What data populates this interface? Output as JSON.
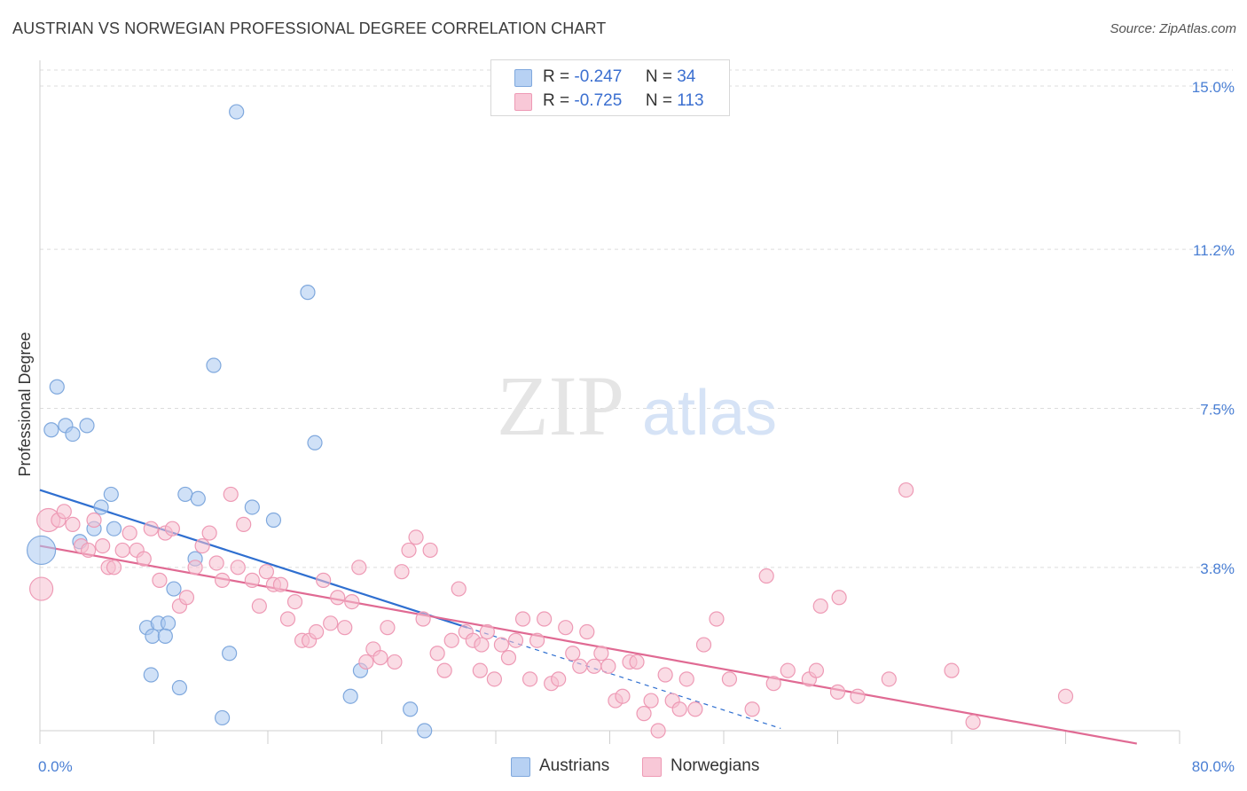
{
  "title": "AUSTRIAN VS NORWEGIAN PROFESSIONAL DEGREE CORRELATION CHART",
  "source": "Source: ZipAtlas.com",
  "watermark": {
    "zip": "ZIP",
    "atlas": "atlas"
  },
  "legend": {
    "r_label": "R =",
    "n_label": "N =",
    "austrians": {
      "r": "-0.247",
      "n": "34"
    },
    "norwegians": {
      "r": "-0.725",
      "n": "113"
    }
  },
  "bottom_legend": {
    "austrians": "Austrians",
    "norwegians": "Norwegians"
  },
  "colors": {
    "austrians_fill": "#a9c8f0",
    "austrians_stroke": "#7fa8dd",
    "austrians_line": "#2f6fd0",
    "norwegians_fill": "#f6bfd0",
    "norwegians_stroke": "#ee9ab5",
    "norwegians_line": "#e06a93",
    "tick_label": "#4a7fd4",
    "grid": "#dcdcdc"
  },
  "chart_data": {
    "type": "scatter",
    "title": "AUSTRIAN VS NORWEGIAN PROFESSIONAL DEGREE CORRELATION CHART",
    "ylabel": "Professional Degree",
    "xlabel": "",
    "xlim": [
      0,
      80
    ],
    "ylim": [
      0,
      15.5
    ],
    "x_tick_labels": [
      {
        "value": 0,
        "label": "0.0%"
      },
      {
        "value": 80,
        "label": "80.0%"
      }
    ],
    "y_tick_labels": [
      {
        "value": 3.8,
        "label": "3.8%"
      },
      {
        "value": 7.5,
        "label": "7.5%"
      },
      {
        "value": 11.2,
        "label": "11.2%"
      },
      {
        "value": 15.0,
        "label": "15.0%"
      }
    ],
    "grid": true,
    "series": [
      {
        "name": "Austrians",
        "points": [
          [
            0.1,
            4.2,
            3
          ],
          [
            0.8,
            7.0,
            1
          ],
          [
            1.2,
            8.0,
            1
          ],
          [
            1.8,
            7.1,
            1
          ],
          [
            2.3,
            6.9,
            1
          ],
          [
            3.3,
            7.1,
            1
          ],
          [
            2.8,
            4.4,
            1
          ],
          [
            3.8,
            4.7,
            1
          ],
          [
            4.3,
            5.2,
            1
          ],
          [
            5.0,
            5.5,
            1
          ],
          [
            5.2,
            4.7,
            1
          ],
          [
            7.5,
            2.4,
            1
          ],
          [
            7.9,
            2.2,
            1
          ],
          [
            8.3,
            2.5,
            1
          ],
          [
            9.0,
            2.5,
            1
          ],
          [
            7.8,
            1.3,
            1
          ],
          [
            8.8,
            2.2,
            1
          ],
          [
            9.4,
            3.3,
            1
          ],
          [
            9.8,
            1.0,
            1
          ],
          [
            10.2,
            5.5,
            1
          ],
          [
            10.9,
            4.0,
            1
          ],
          [
            11.1,
            5.4,
            1
          ],
          [
            12.2,
            8.5,
            1
          ],
          [
            12.8,
            0.3,
            1
          ],
          [
            13.3,
            1.8,
            1
          ],
          [
            13.8,
            14.4,
            1
          ],
          [
            14.9,
            5.2,
            1
          ],
          [
            16.4,
            4.9,
            1
          ],
          [
            18.8,
            10.2,
            1
          ],
          [
            19.3,
            6.7,
            1
          ],
          [
            21.8,
            0.8,
            1
          ],
          [
            22.5,
            1.4,
            1
          ],
          [
            26.0,
            0.5,
            1
          ],
          [
            27.0,
            0.0,
            1
          ]
        ]
      },
      {
        "name": "Norwegians",
        "points": [
          [
            0.1,
            3.3,
            2
          ],
          [
            0.6,
            4.9,
            2
          ],
          [
            1.3,
            4.9,
            1
          ],
          [
            1.7,
            5.1,
            1
          ],
          [
            2.3,
            4.8,
            1
          ],
          [
            2.9,
            4.3,
            1
          ],
          [
            3.4,
            4.2,
            1
          ],
          [
            3.8,
            4.9,
            1
          ],
          [
            4.4,
            4.3,
            1
          ],
          [
            4.8,
            3.8,
            1
          ],
          [
            5.2,
            3.8,
            1
          ],
          [
            5.8,
            4.2,
            1
          ],
          [
            6.3,
            4.6,
            1
          ],
          [
            6.8,
            4.2,
            1
          ],
          [
            7.3,
            4.0,
            1
          ],
          [
            7.8,
            4.7,
            1
          ],
          [
            8.4,
            3.5,
            1
          ],
          [
            8.8,
            4.6,
            1
          ],
          [
            9.3,
            4.7,
            1
          ],
          [
            9.8,
            2.9,
            1
          ],
          [
            10.3,
            3.1,
            1
          ],
          [
            10.9,
            3.8,
            1
          ],
          [
            11.4,
            4.3,
            1
          ],
          [
            11.9,
            4.6,
            1
          ],
          [
            12.4,
            3.9,
            1
          ],
          [
            12.8,
            3.5,
            1
          ],
          [
            13.4,
            5.5,
            1
          ],
          [
            13.9,
            3.8,
            1
          ],
          [
            14.3,
            4.8,
            1
          ],
          [
            14.9,
            3.5,
            1
          ],
          [
            15.4,
            2.9,
            1
          ],
          [
            15.9,
            3.7,
            1
          ],
          [
            16.4,
            3.4,
            1
          ],
          [
            16.9,
            3.4,
            1
          ],
          [
            17.4,
            2.6,
            1
          ],
          [
            17.9,
            3.0,
            1
          ],
          [
            18.4,
            2.1,
            1
          ],
          [
            18.9,
            2.1,
            1
          ],
          [
            19.4,
            2.3,
            1
          ],
          [
            19.9,
            3.5,
            1
          ],
          [
            20.4,
            2.5,
            1
          ],
          [
            20.9,
            3.1,
            1
          ],
          [
            21.4,
            2.4,
            1
          ],
          [
            21.9,
            3.0,
            1
          ],
          [
            22.4,
            3.8,
            1
          ],
          [
            22.9,
            1.6,
            1
          ],
          [
            23.4,
            1.9,
            1
          ],
          [
            23.9,
            1.7,
            1
          ],
          [
            24.4,
            2.4,
            1
          ],
          [
            24.9,
            1.6,
            1
          ],
          [
            25.4,
            3.7,
            1
          ],
          [
            25.9,
            4.2,
            1
          ],
          [
            26.4,
            4.5,
            1
          ],
          [
            26.9,
            2.6,
            1
          ],
          [
            27.4,
            4.2,
            1
          ],
          [
            27.9,
            1.8,
            1
          ],
          [
            28.4,
            1.4,
            1
          ],
          [
            28.9,
            2.1,
            1
          ],
          [
            29.4,
            3.3,
            1
          ],
          [
            29.9,
            2.3,
            1
          ],
          [
            30.4,
            2.1,
            1
          ],
          [
            30.9,
            1.4,
            1
          ],
          [
            31.4,
            2.3,
            1
          ],
          [
            31.9,
            1.2,
            1
          ],
          [
            32.4,
            2.0,
            1
          ],
          [
            32.9,
            1.7,
            1
          ],
          [
            33.4,
            2.1,
            1
          ],
          [
            33.9,
            2.6,
            1
          ],
          [
            34.4,
            1.2,
            1
          ],
          [
            34.9,
            2.1,
            1
          ],
          [
            35.4,
            2.6,
            1
          ],
          [
            35.9,
            1.1,
            1
          ],
          [
            36.4,
            1.2,
            1
          ],
          [
            36.9,
            2.4,
            1
          ],
          [
            37.4,
            1.8,
            1
          ],
          [
            37.9,
            1.5,
            1
          ],
          [
            38.4,
            2.3,
            1
          ],
          [
            38.9,
            1.5,
            1
          ],
          [
            39.4,
            1.8,
            1
          ],
          [
            39.9,
            1.5,
            1
          ],
          [
            40.4,
            0.7,
            1
          ],
          [
            40.9,
            0.8,
            1
          ],
          [
            41.4,
            1.6,
            1
          ],
          [
            41.9,
            1.6,
            1
          ],
          [
            42.4,
            0.4,
            1
          ],
          [
            42.9,
            0.7,
            1
          ],
          [
            43.4,
            0.0,
            1
          ],
          [
            43.9,
            1.3,
            1
          ],
          [
            44.4,
            0.7,
            1
          ],
          [
            44.9,
            0.5,
            1
          ],
          [
            45.4,
            1.2,
            1
          ],
          [
            46.0,
            0.5,
            1
          ],
          [
            46.6,
            2.0,
            1
          ],
          [
            47.5,
            2.6,
            1
          ],
          [
            48.4,
            1.2,
            1
          ],
          [
            50.0,
            0.5,
            1
          ],
          [
            51.5,
            1.1,
            1
          ],
          [
            51.0,
            3.6,
            1
          ],
          [
            52.5,
            1.4,
            1
          ],
          [
            54.0,
            1.2,
            1
          ],
          [
            54.5,
            1.4,
            1
          ],
          [
            54.8,
            2.9,
            1
          ],
          [
            56.1,
            3.1,
            1
          ],
          [
            56.0,
            0.9,
            1
          ],
          [
            57.4,
            0.8,
            1
          ],
          [
            59.6,
            1.2,
            1
          ],
          [
            60.8,
            5.6,
            1
          ],
          [
            64.0,
            1.4,
            1
          ],
          [
            65.5,
            0.2,
            1
          ],
          [
            72.0,
            0.8,
            1
          ],
          [
            31.0,
            2.0,
            1
          ]
        ]
      }
    ],
    "trend_lines": [
      {
        "series": "Austrians",
        "x": [
          0,
          30
        ],
        "y": [
          5.6,
          2.4
        ],
        "dashed_extension_to_x": 52
      },
      {
        "series": "Norwegians",
        "x": [
          0,
          77
        ],
        "y": [
          4.3,
          -0.3
        ]
      }
    ]
  }
}
